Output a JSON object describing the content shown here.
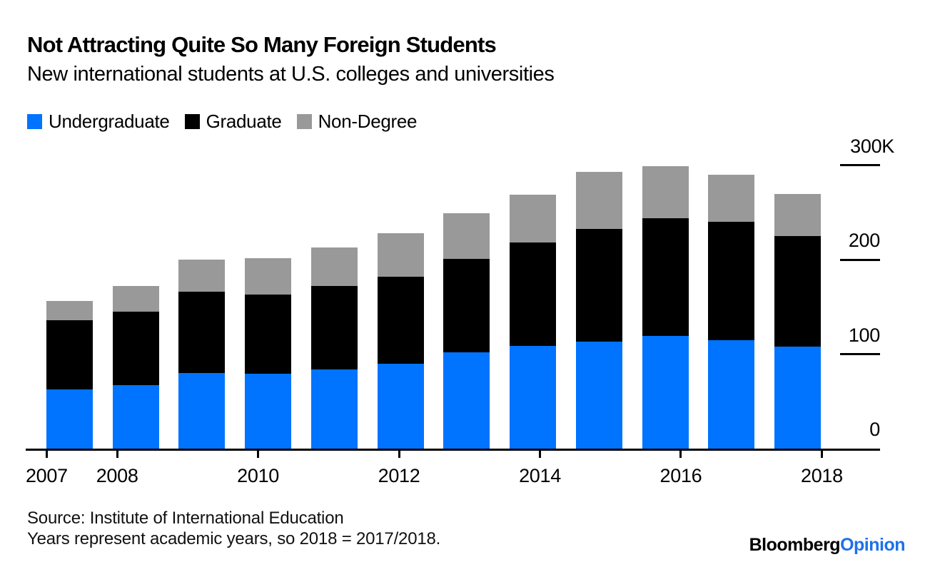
{
  "header": {
    "title": "Not Attracting Quite So Many Foreign Students",
    "subtitle": "New international students at U.S. colleges and universities"
  },
  "legend": [
    {
      "label": "Undergraduate",
      "color": "#0073ff"
    },
    {
      "label": "Graduate",
      "color": "#000000"
    },
    {
      "label": "Non-Degree",
      "color": "#999999"
    }
  ],
  "chart_data": {
    "type": "bar",
    "stacked": true,
    "title": "Not Attracting Quite So Many Foreign Students",
    "subtitle": "New international students at U.S. colleges and universities",
    "unit": "thousands of students",
    "categories": [
      2007,
      2008,
      2009,
      2010,
      2011,
      2012,
      2013,
      2014,
      2015,
      2016,
      2017,
      2018
    ],
    "series": [
      {
        "name": "Undergraduate",
        "color": "#0073ff",
        "values": [
          63,
          67,
          80,
          79,
          84,
          90,
          102,
          109,
          113,
          119,
          115,
          108
        ]
      },
      {
        "name": "Graduate",
        "color": "#000000",
        "values": [
          73,
          78,
          86,
          84,
          88,
          92,
          99,
          109,
          120,
          125,
          125,
          117
        ]
      },
      {
        "name": "Non-Degree",
        "color": "#999999",
        "values": [
          20,
          27,
          34,
          39,
          41,
          46,
          48,
          51,
          60,
          55,
          50,
          45
        ]
      }
    ],
    "totals": [
      156,
      172,
      200,
      202,
      213,
      228,
      249,
      269,
      293,
      299,
      290,
      270
    ],
    "ylim": [
      0,
      300
    ],
    "y_ticks": [
      {
        "value": 300,
        "label": "300K"
      },
      {
        "value": 200,
        "label": "200"
      },
      {
        "value": 100,
        "label": "100"
      },
      {
        "value": 0,
        "label": "0"
      }
    ],
    "x_tick_labels": [
      "2007",
      "2008",
      "2010",
      "2012",
      "2014",
      "2016",
      "2018"
    ],
    "grid": false,
    "legend_position": "top-left",
    "y_axis_position": "right"
  },
  "footer": {
    "source": "Source: Institute of International Education",
    "note": "Years represent academic years, so 2018 = 2017/2018.",
    "brand_black": "Bloomberg",
    "brand_blue": "Opinion"
  }
}
